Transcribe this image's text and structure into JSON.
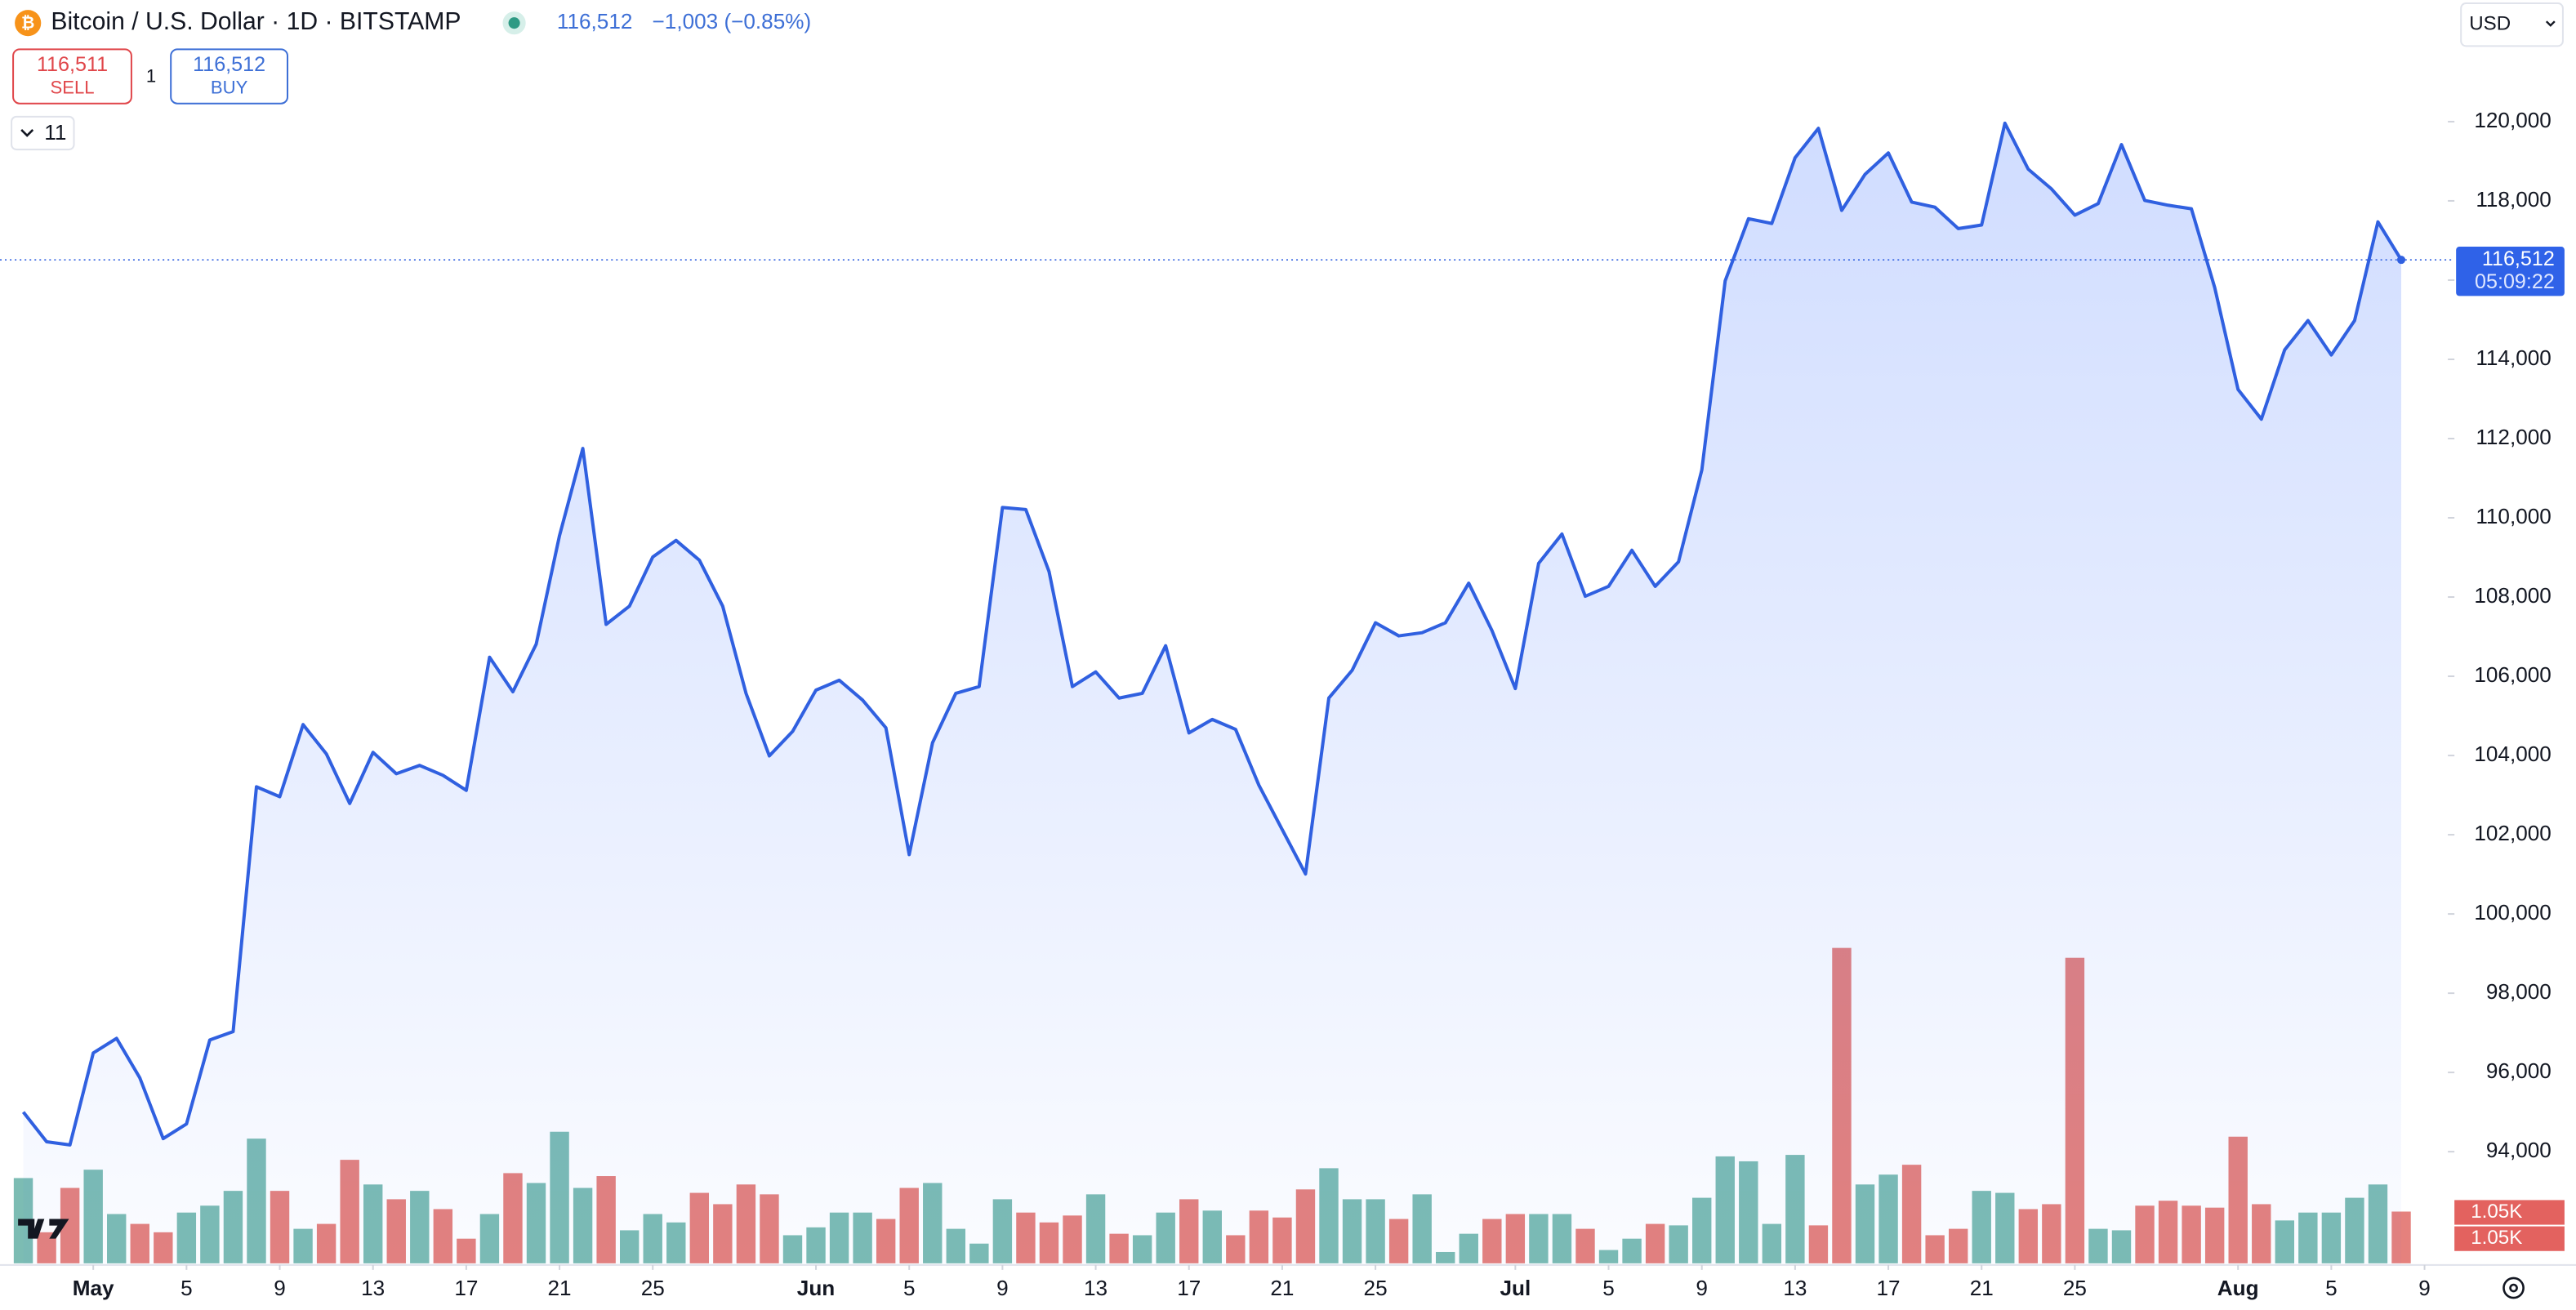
{
  "header": {
    "symbol": "Bitcoin / U.S. Dollar · 1D · BITSTAMP",
    "price": "116,512",
    "change": "−1,003 (−0.85%)",
    "sell_price": "116,511",
    "sell": "SELL",
    "spread": "1",
    "buy_price": "116,512",
    "buy": "BUY",
    "indicators": "11",
    "currency": "USD"
  },
  "chart_data": {
    "type": "line",
    "x": [
      "Apr 28",
      "Apr 29",
      "Apr 30",
      "May 1",
      "May 2",
      "May 3",
      "May 4",
      "May 5",
      "May 6",
      "May 7",
      "May 8",
      "May 9",
      "May 10",
      "May 11",
      "May 12",
      "May 13",
      "May 14",
      "May 15",
      "May 16",
      "May 17",
      "May 18",
      "May 19",
      "May 20",
      "May 21",
      "May 22",
      "May 23",
      "May 24",
      "May 25",
      "May 26",
      "May 27",
      "May 28",
      "May 29",
      "May 30",
      "May 31",
      "Jun 1",
      "Jun 2",
      "Jun 3",
      "Jun 4",
      "Jun 5",
      "Jun 6",
      "Jun 7",
      "Jun 8",
      "Jun 9",
      "Jun 10",
      "Jun 11",
      "Jun 12",
      "Jun 13",
      "Jun 14",
      "Jun 15",
      "Jun 16",
      "Jun 17",
      "Jun 18",
      "Jun 19",
      "Jun 20",
      "Jun 21",
      "Jun 22",
      "Jun 23",
      "Jun 24",
      "Jun 25",
      "Jun 26",
      "Jun 27",
      "Jun 28",
      "Jun 29",
      "Jun 30",
      "Jul 1",
      "Jul 2",
      "Jul 3",
      "Jul 4",
      "Jul 5",
      "Jul 6",
      "Jul 7",
      "Jul 8",
      "Jul 9",
      "Jul 10",
      "Jul 11",
      "Jul 12",
      "Jul 13",
      "Jul 14",
      "Jul 15",
      "Jul 16",
      "Jul 17",
      "Jul 18",
      "Jul 19",
      "Jul 20",
      "Jul 21",
      "Jul 22",
      "Jul 23",
      "Jul 24",
      "Jul 25",
      "Jul 26",
      "Jul 27",
      "Jul 28",
      "Jul 29",
      "Jul 30",
      "Jul 31",
      "Aug 1",
      "Aug 2",
      "Aug 3",
      "Aug 4",
      "Aug 5",
      "Aug 6",
      "Aug 7",
      "Aug 8"
    ],
    "xlim": [
      "Apr 27",
      "Aug 10"
    ],
    "xticks": [
      {
        "value": "May 1",
        "label": "May"
      },
      {
        "value": "May 5",
        "label": "5"
      },
      {
        "value": "May 9",
        "label": "9"
      },
      {
        "value": "May 13",
        "label": "13"
      },
      {
        "value": "May 17",
        "label": "17"
      },
      {
        "value": "May 21",
        "label": "21"
      },
      {
        "value": "May 25",
        "label": "25"
      },
      {
        "value": "Jun 1",
        "label": "Jun"
      },
      {
        "value": "Jun 5",
        "label": "5"
      },
      {
        "value": "Jun 9",
        "label": "9"
      },
      {
        "value": "Jun 13",
        "label": "13"
      },
      {
        "value": "Jun 17",
        "label": "17"
      },
      {
        "value": "Jun 21",
        "label": "21"
      },
      {
        "value": "Jun 25",
        "label": "25"
      },
      {
        "value": "Jul 1",
        "label": "Jul"
      },
      {
        "value": "Jul 5",
        "label": "5"
      },
      {
        "value": "Jul 9",
        "label": "9"
      },
      {
        "value": "Jul 13",
        "label": "13"
      },
      {
        "value": "Jul 17",
        "label": "17"
      },
      {
        "value": "Jul 21",
        "label": "21"
      },
      {
        "value": "Jul 25",
        "label": "25"
      },
      {
        "value": "Aug 1",
        "label": "Aug"
      },
      {
        "value": "Aug 5",
        "label": "5"
      },
      {
        "value": "Aug 9",
        "label": "9"
      }
    ],
    "series": [
      {
        "name": "Bitcoin / U.S. Dollar",
        "color": "#3060e0",
        "values": [
          95000,
          94250,
          94170,
          96490,
          96860,
          95860,
          94330,
          94700,
          96820,
          97030,
          103210,
          102960,
          104780,
          104040,
          102790,
          104080,
          103540,
          103750,
          103500,
          103120,
          106480,
          105610,
          106810,
          109550,
          111750,
          107310,
          107770,
          109010,
          109430,
          108930,
          107770,
          105570,
          103990,
          104610,
          105650,
          105900,
          105400,
          104700,
          101500,
          104320,
          105570,
          105740,
          110260,
          110210,
          108640,
          105740,
          106110,
          105450,
          105570,
          106770,
          104570,
          104910,
          104660,
          103250,
          102130,
          101010,
          105450,
          106150,
          107350,
          107020,
          107100,
          107350,
          108350,
          107150,
          105690,
          108850,
          109590,
          108020,
          108270,
          109180,
          108270,
          108890,
          111210,
          115980,
          117550,
          117430,
          119090,
          119830,
          117760,
          118670,
          119210,
          117970,
          117840,
          117300,
          117390,
          119960,
          118800,
          118300,
          117640,
          117930,
          119420,
          118010,
          117890,
          117800,
          115810,
          113240,
          112490,
          114240,
          114980,
          114110,
          114980,
          117470,
          116512
        ]
      }
    ],
    "ylim": [
      91140,
      123070
    ],
    "yticks": [
      {
        "value": 94000,
        "label": "94,000"
      },
      {
        "value": 96000,
        "label": "96,000"
      },
      {
        "value": 98000,
        "label": "98,000"
      },
      {
        "value": 100000,
        "label": "100,000"
      },
      {
        "value": 102000,
        "label": "102,000"
      },
      {
        "value": 104000,
        "label": "104,000"
      },
      {
        "value": 106000,
        "label": "106,000"
      },
      {
        "value": 108000,
        "label": "108,000"
      },
      {
        "value": 110000,
        "label": "110,000"
      },
      {
        "value": 112000,
        "label": "112,000"
      },
      {
        "value": 114000,
        "label": "114,000"
      },
      {
        "value": 116000,
        "label": "116,000"
      },
      {
        "value": 118000,
        "label": "118,000"
      },
      {
        "value": 120000,
        "label": "120,000"
      }
    ],
    "price_label": {
      "value": 116512,
      "label": "116,512"
    },
    "countdown": "05:09:22",
    "volume": {
      "type": "bar",
      "values": [
        1730,
        630,
        1530,
        1900,
        1000,
        800,
        630,
        1030,
        1170,
        1470,
        2530,
        1470,
        700,
        800,
        2100,
        1600,
        1300,
        1470,
        1100,
        500,
        1000,
        1830,
        1630,
        2670,
        1530,
        1770,
        670,
        1000,
        830,
        1430,
        1200,
        1600,
        1400,
        570,
        730,
        1030,
        1030,
        900,
        1530,
        1630,
        700,
        400,
        1300,
        1030,
        830,
        970,
        1400,
        600,
        570,
        1030,
        1300,
        1070,
        570,
        1070,
        930,
        1500,
        1930,
        1300,
        1300,
        900,
        1400,
        230,
        600,
        900,
        1000,
        1000,
        1000,
        700,
        270,
        500,
        800,
        770,
        1330,
        2170,
        2070,
        800,
        2200,
        770,
        6400,
        1600,
        1800,
        2000,
        570,
        700,
        1470,
        1430,
        1100,
        1200,
        6200,
        700,
        670,
        1170,
        1270,
        1170,
        1130,
        2570,
        1200,
        870,
        1030,
        1030,
        1330,
        1600,
        1050
      ],
      "colors": [
        "#7cbcb3",
        "#e5817d",
        "#e5817d",
        "#7cbcb3",
        "#7cbcb3",
        "#e5817d",
        "#e5817d",
        "#7cbcb3",
        "#7cbcb3",
        "#7cbcb3",
        "#7cbcb3",
        "#e5817d",
        "#7cbcb3",
        "#e5817d",
        "#e5817d",
        "#7cbcb3",
        "#e5817d",
        "#7cbcb3",
        "#e5817d",
        "#e5817d",
        "#7cbcb3",
        "#e5817d",
        "#7cbcb3",
        "#7cbcb3",
        "#7cbcb3",
        "#e5817d",
        "#7cbcb3",
        "#7cbcb3",
        "#7cbcb3",
        "#e5817d",
        "#e5817d",
        "#e5817d",
        "#e5817d",
        "#7cbcb3",
        "#7cbcb3",
        "#7cbcb3",
        "#7cbcb3",
        "#e5817d",
        "#e5817d",
        "#7cbcb3",
        "#7cbcb3",
        "#7cbcb3",
        "#7cbcb3",
        "#e5817d",
        "#e5817d",
        "#e5817d",
        "#7cbcb3",
        "#e5817d",
        "#7cbcb3",
        "#7cbcb3",
        "#e5817d",
        "#7cbcb3",
        "#e5817d",
        "#e5817d",
        "#e5817d",
        "#e5817d",
        "#7cbcb3",
        "#7cbcb3",
        "#7cbcb3",
        "#e5817d",
        "#7cbcb3",
        "#7cbcb3",
        "#7cbcb3",
        "#e5817d",
        "#e5817d",
        "#7cbcb3",
        "#7cbcb3",
        "#e5817d",
        "#7cbcb3",
        "#7cbcb3",
        "#e5817d",
        "#7cbcb3",
        "#7cbcb3",
        "#7cbcb3",
        "#7cbcb3",
        "#7cbcb3",
        "#7cbcb3",
        "#e5817d",
        "#e5817d",
        "#7cbcb3",
        "#7cbcb3",
        "#e5817d",
        "#e5817d",
        "#e5817d",
        "#7cbcb3",
        "#7cbcb3",
        "#e5817d",
        "#e5817d",
        "#e5817d",
        "#7cbcb3",
        "#7cbcb3",
        "#e5817d",
        "#e5817d",
        "#e5817d",
        "#e5817d",
        "#e5817d",
        "#e5817d",
        "#7cbcb3",
        "#7cbcb3",
        "#7cbcb3",
        "#7cbcb3",
        "#7cbcb3",
        "#e5817d"
      ],
      "axis_labels": [
        {
          "value": 1050,
          "label": "1.05K"
        },
        {
          "value": 1050,
          "label": "1.05K"
        }
      ]
    }
  }
}
